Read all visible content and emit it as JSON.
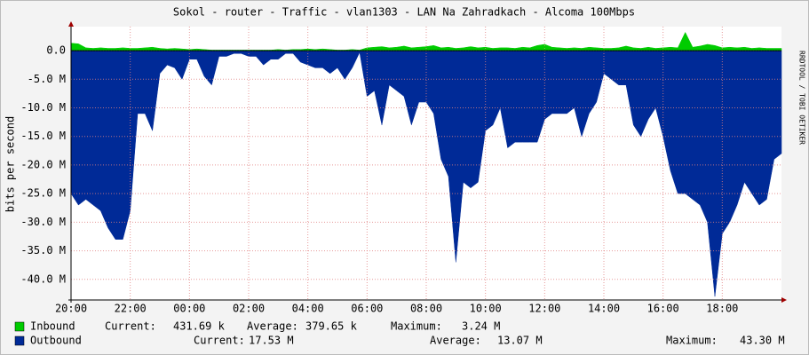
{
  "chart_data": {
    "type": "area",
    "title": "Sokol - router - Traffic - vlan1303 - LAN Na Zahradkach - Alcoma 100Mbps",
    "y_label": "bits per second",
    "side_text": "RRDTOOL / TOBI OETIKER",
    "grid": true,
    "xlim": [
      0,
      24
    ],
    "xticks": [
      {
        "value": 0,
        "label": "20:00"
      },
      {
        "value": 2,
        "label": "22:00"
      },
      {
        "value": 4,
        "label": "00:00"
      },
      {
        "value": 6,
        "label": "02:00"
      },
      {
        "value": 8,
        "label": "04:00"
      },
      {
        "value": 10,
        "label": "06:00"
      },
      {
        "value": 12,
        "label": "08:00"
      },
      {
        "value": 14,
        "label": "10:00"
      },
      {
        "value": 16,
        "label": "12:00"
      },
      {
        "value": 18,
        "label": "14:00"
      },
      {
        "value": 20,
        "label": "16:00"
      },
      {
        "value": 22,
        "label": "18:00"
      }
    ],
    "ylim": [
      -43.6,
      4.2
    ],
    "yticks": [
      {
        "value": 0,
        "label": "0.0"
      },
      {
        "value": -5,
        "label": "-5.0 M"
      },
      {
        "value": -10,
        "label": "-10.0 M"
      },
      {
        "value": -15,
        "label": "-15.0 M"
      },
      {
        "value": -20,
        "label": "-20.0 M"
      },
      {
        "value": -25,
        "label": "-25.0 M"
      },
      {
        "value": -30,
        "label": "-30.0 M"
      },
      {
        "value": -35,
        "label": "-35.0 M"
      },
      {
        "value": -40,
        "label": "-40.0 M"
      }
    ],
    "x": [
      0,
      0.25,
      0.5,
      0.75,
      1,
      1.25,
      1.5,
      1.75,
      2,
      2.25,
      2.5,
      2.75,
      3,
      3.25,
      3.5,
      3.75,
      4,
      4.25,
      4.5,
      4.75,
      5,
      5.25,
      5.5,
      5.75,
      6,
      6.25,
      6.5,
      6.75,
      7,
      7.25,
      7.5,
      7.75,
      8,
      8.25,
      8.5,
      8.75,
      9,
      9.25,
      9.5,
      9.75,
      10,
      10.25,
      10.5,
      10.75,
      11,
      11.25,
      11.5,
      11.75,
      12,
      12.25,
      12.5,
      12.75,
      13,
      13.25,
      13.5,
      13.75,
      14,
      14.25,
      14.5,
      14.75,
      15,
      15.25,
      15.5,
      15.75,
      16,
      16.25,
      16.5,
      16.75,
      17,
      17.25,
      17.5,
      17.75,
      18,
      18.25,
      18.5,
      18.75,
      19,
      19.25,
      19.5,
      19.75,
      20,
      20.25,
      20.5,
      20.75,
      21,
      21.25,
      21.5,
      21.75,
      22,
      22.25,
      22.5,
      22.75,
      23,
      23.25,
      23.5,
      23.75,
      24
    ],
    "series": [
      {
        "name": "Inbound",
        "color": "#00cc00",
        "stats": [
          "Current:",
          "431.69 k",
          "Average:",
          "379.65 k",
          "Maximum:",
          "3.24 M"
        ],
        "values": [
          1.3,
          1.2,
          0.5,
          0.4,
          0.5,
          0.4,
          0.4,
          0.5,
          0.4,
          0.4,
          0.5,
          0.6,
          0.4,
          0.3,
          0.4,
          0.3,
          0.2,
          0.3,
          0.2,
          0.1,
          0.1,
          0.1,
          0.1,
          0.1,
          0.1,
          0.1,
          0.1,
          0.1,
          0.2,
          0.1,
          0.2,
          0.2,
          0.3,
          0.2,
          0.3,
          0.2,
          0.1,
          0.1,
          0.2,
          0.1,
          0.5,
          0.6,
          0.7,
          0.5,
          0.6,
          0.8,
          0.5,
          0.6,
          0.7,
          0.9,
          0.5,
          0.6,
          0.4,
          0.5,
          0.7,
          0.5,
          0.6,
          0.4,
          0.5,
          0.5,
          0.4,
          0.6,
          0.5,
          0.9,
          1.1,
          0.6,
          0.5,
          0.4,
          0.5,
          0.4,
          0.6,
          0.5,
          0.4,
          0.4,
          0.5,
          0.8,
          0.5,
          0.4,
          0.6,
          0.4,
          0.5,
          0.6,
          0.5,
          3.2,
          0.6,
          0.8,
          1.1,
          0.9,
          0.5,
          0.6,
          0.5,
          0.6,
          0.4,
          0.5,
          0.4,
          0.4,
          0.4
        ]
      },
      {
        "name": "Outbound",
        "color": "#002a97",
        "stats": [
          "Current:",
          "17.53 M",
          "Average:",
          "13.07 M",
          "Maximum:",
          "43.30 M"
        ],
        "values": [
          -25,
          -27,
          -26,
          -27,
          -28,
          -31,
          -33,
          -33,
          -28,
          -11,
          -11,
          -14,
          -4,
          -2.5,
          -3,
          -5,
          -1.5,
          -1.5,
          -4.5,
          -6,
          -1,
          -1,
          -0.5,
          -0.5,
          -1,
          -1,
          -2.5,
          -1.5,
          -1.5,
          -0.5,
          -0.5,
          -2,
          -2.5,
          -3,
          -3,
          -4,
          -3,
          -5,
          -3,
          -0.3,
          -8,
          -7,
          -13,
          -6,
          -7,
          -8,
          -13,
          -9,
          -9,
          -11,
          -19,
          -22,
          -37,
          -23,
          -24,
          -23,
          -14,
          -13,
          -10,
          -17,
          -16,
          -16,
          -16,
          -16,
          -12,
          -11,
          -11,
          -11,
          -10,
          -15,
          -11,
          -9,
          -4,
          -5,
          -6,
          -6,
          -13,
          -15,
          -12,
          -10,
          -15,
          -21,
          -25,
          -25,
          -26,
          -27,
          -30,
          -43,
          -32,
          -30,
          -27,
          -23,
          -25,
          -27,
          -26,
          -19,
          -18
        ]
      }
    ]
  }
}
